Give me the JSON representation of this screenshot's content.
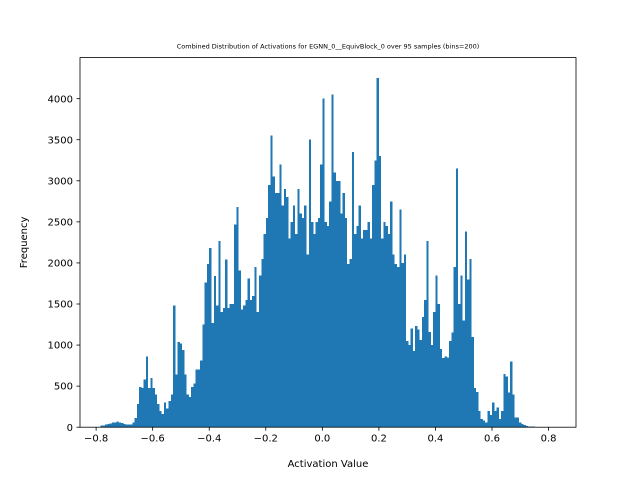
{
  "chart_data": {
    "type": "bar",
    "title": "Combined Distribution of Activations for EGNN_0__EquivBlock_0 over 95 samples  (bins=200)",
    "xlabel": "Activation Value",
    "ylabel": "Frequency",
    "xlim": [
      -0.857,
      0.897
    ],
    "ylim": [
      0,
      4500
    ],
    "xticks": [
      -0.8,
      -0.6,
      -0.4,
      -0.2,
      0.0,
      0.2,
      0.4,
      0.6,
      0.8
    ],
    "xtick_labels": [
      "−0.8",
      "−0.6",
      "−0.4",
      "−0.2",
      "0.0",
      "0.2",
      "0.4",
      "0.6",
      "0.8"
    ],
    "yticks": [
      0,
      500,
      1000,
      1500,
      2000,
      2500,
      3000,
      3500,
      4000
    ],
    "ytick_labels": [
      "0",
      "500",
      "1000",
      "1500",
      "2000",
      "2500",
      "3000",
      "3500",
      "4000"
    ],
    "bins": 200,
    "bin_range": [
      -0.8,
      0.8
    ],
    "bar_color": "#1f77b4",
    "grid": false,
    "legend": "none",
    "values": [
      5,
      5,
      18,
      20,
      30,
      40,
      45,
      60,
      55,
      70,
      55,
      50,
      40,
      30,
      30,
      35,
      60,
      110,
      280,
      490,
      480,
      580,
      860,
      480,
      600,
      480,
      400,
      280,
      200,
      160,
      300,
      230,
      320,
      400,
      1480,
      640,
      1040,
      1020,
      940,
      640,
      400,
      370,
      490,
      530,
      700,
      700,
      810,
      1250,
      1760,
      1990,
      2180,
      1270,
      1840,
      1480,
      2270,
      1400,
      1450,
      2040,
      1450,
      1500,
      1500,
      2470,
      2680,
      1910,
      1430,
      1480,
      1550,
      1810,
      1550,
      1600,
      1950,
      1400,
      1850,
      2050,
      2350,
      2550,
      2950,
      3550,
      3050,
      2850,
      2850,
      3200,
      2700,
      2900,
      2800,
      2300,
      2500,
      2700,
      2350,
      2900,
      2600,
      2550,
      2700,
      2100,
      3500,
      2500,
      2350,
      2500,
      2550,
      3200,
      4000,
      2500,
      2450,
      2750,
      4050,
      3100,
      3000,
      3000,
      2600,
      2850,
      2550,
      1990,
      2050,
      3350,
      2350,
      2450,
      2700,
      2300,
      2400,
      2400,
      2500,
      2300,
      2950,
      3250,
      4250,
      3300,
      2300,
      2500,
      2450,
      2350,
      2750,
      2100,
      1990,
      1950,
      2650,
      2000,
      2100,
      1050,
      1000,
      1200,
      930,
      1230,
      1190,
      1060,
      1340,
      1550,
      2270,
      1160,
      1000,
      1400,
      1850,
      1500,
      950,
      840,
      860,
      850,
      1050,
      1150,
      1950,
      3150,
      1500,
      1850,
      1300,
      2380,
      1800,
      2050,
      1100,
      480,
      430,
      200,
      100,
      80,
      60,
      200,
      150,
      300,
      200,
      240,
      100,
      200,
      650,
      620,
      420,
      800,
      400,
      120,
      120,
      60,
      40,
      25,
      15,
      10,
      8,
      6,
      5,
      4,
      3,
      3,
      2,
      2
    ]
  }
}
